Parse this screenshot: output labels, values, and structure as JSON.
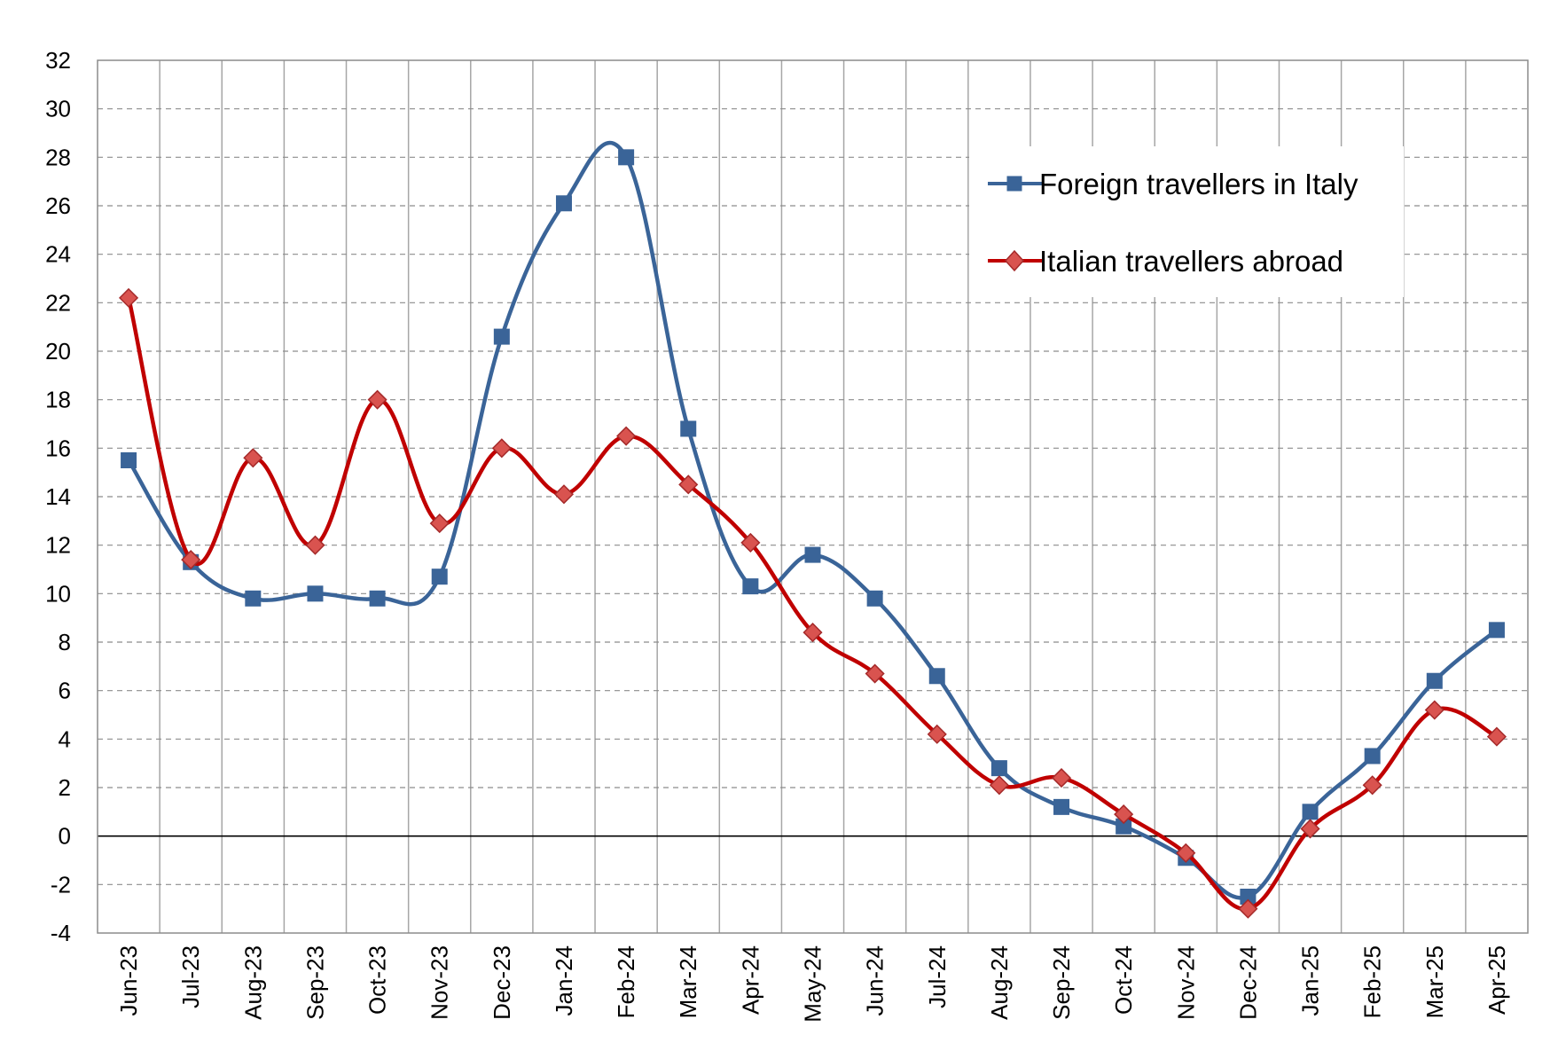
{
  "colors": {
    "foreign": "#3A6498",
    "italian": "#C00000",
    "italian_marker_fill": "#D9534F",
    "italian_marker_stroke": "#A52A2A"
  },
  "chart_data": {
    "type": "line",
    "title": "",
    "xlabel": "",
    "ylabel": "",
    "categories": [
      "Jun-23",
      "Jul-23",
      "Aug-23",
      "Sep-23",
      "Oct-23",
      "Nov-23",
      "Dec-23",
      "Jan-24",
      "Feb-24",
      "Mar-24",
      "Apr-24",
      "May-24",
      "Jun-24",
      "Jul-24",
      "Aug-24",
      "Sep-24",
      "Oct-24",
      "Nov-24",
      "Dec-24",
      "Jan-25",
      "Feb-25",
      "Mar-25",
      "Apr-25"
    ],
    "ylim": [
      -4,
      32
    ],
    "yticks": [
      "32",
      "30",
      "28",
      "26",
      "24",
      "22",
      "20",
      "18",
      "16",
      "14",
      "12",
      "10",
      "8",
      "6",
      "4",
      "2",
      "0",
      "-2",
      "-4"
    ],
    "grid": true,
    "legend_position": "top-right",
    "series": [
      {
        "name": "Foreign travellers in Italy",
        "marker": "square",
        "values": [
          15.5,
          11.3,
          9.8,
          10.0,
          9.8,
          10.7,
          20.6,
          26.1,
          28.0,
          16.8,
          10.3,
          11.6,
          9.8,
          6.6,
          2.8,
          1.2,
          0.4,
          -0.9,
          -2.5,
          1.0,
          3.3,
          6.4,
          8.5
        ]
      },
      {
        "name": "Italian travellers abroad",
        "marker": "diamond",
        "values": [
          22.2,
          11.4,
          15.6,
          12.0,
          18.0,
          12.9,
          16.0,
          14.1,
          16.5,
          14.5,
          12.1,
          8.4,
          6.7,
          4.2,
          2.1,
          2.4,
          0.9,
          -0.7,
          -3.0,
          0.3,
          2.1,
          5.2,
          4.1
        ]
      }
    ]
  }
}
